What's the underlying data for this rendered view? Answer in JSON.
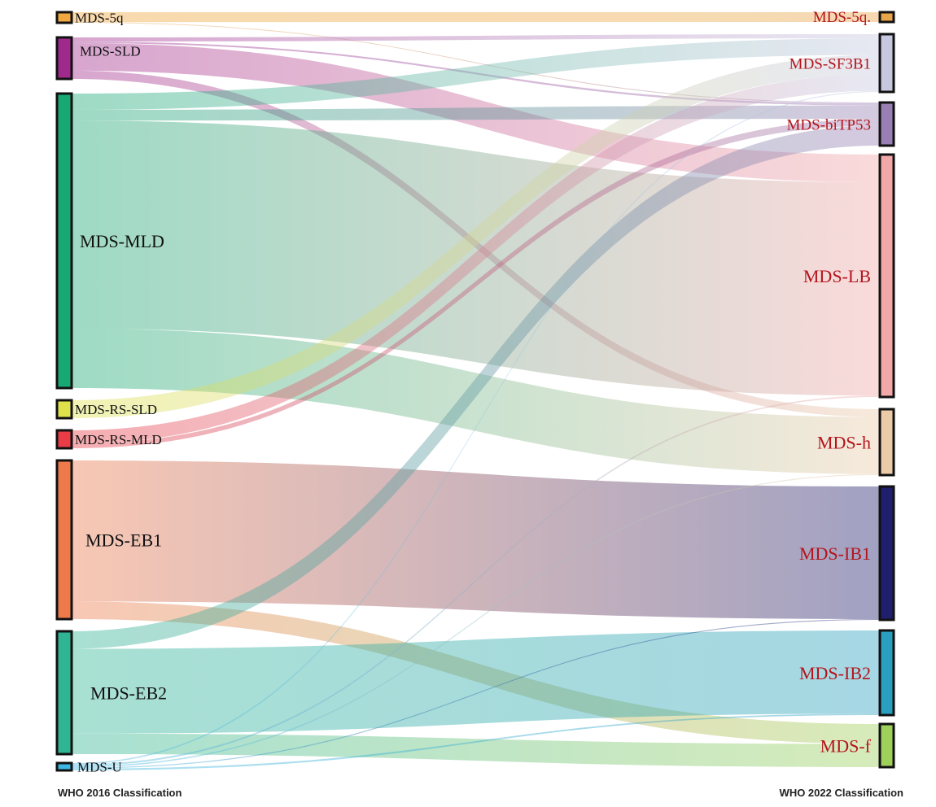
{
  "left_axis_title": "WHO 2016 Classification",
  "right_axis_title": "WHO 2022 Classification",
  "source_nodes": [
    {
      "id": "MDS-5q",
      "label": "MDS-5q",
      "color": "#f1a83e"
    },
    {
      "id": "MDS-SLD",
      "label": "MDS-SLD",
      "color": "#a02a8c"
    },
    {
      "id": "MDS-MLD",
      "label": "MDS-MLD",
      "color": "#17a874"
    },
    {
      "id": "MDS-RS-SLD",
      "label": "MDS-RS-SLD",
      "color": "#dfe24a"
    },
    {
      "id": "MDS-RS-MLD",
      "label": "MDS-RS-MLD",
      "color": "#e93c46"
    },
    {
      "id": "MDS-EB1",
      "label": "MDS-EB1",
      "color": "#ee7a4c"
    },
    {
      "id": "MDS-EB2",
      "label": "MDS-EB2",
      "color": "#2fb594"
    },
    {
      "id": "MDS-U",
      "label": "MDS-U",
      "color": "#3cb6e3"
    }
  ],
  "target_nodes": [
    {
      "id": "MDS-5q.",
      "label": "MDS-5q.",
      "color": "#e9a54a"
    },
    {
      "id": "MDS-SF3B1",
      "label": "MDS-SF3B1",
      "color": "#c6c8e0"
    },
    {
      "id": "MDS-biTP53",
      "label": "MDS-biTP53",
      "color": "#9a7fb4"
    },
    {
      "id": "MDS-LB",
      "label": "MDS-LB",
      "color": "#f2a8a8"
    },
    {
      "id": "MDS-h",
      "label": "MDS-h",
      "color": "#ebcba8"
    },
    {
      "id": "MDS-IB1",
      "label": "MDS-IB1",
      "color": "#1f1f6e"
    },
    {
      "id": "MDS-IB2",
      "label": "MDS-IB2",
      "color": "#2a9fbf"
    },
    {
      "id": "MDS-f",
      "label": "MDS-f",
      "color": "#9ed05a"
    }
  ],
  "links": [
    {
      "source": "MDS-5q",
      "target": "MDS-5q.",
      "value": 4,
      "color": "#f1a83e"
    },
    {
      "source": "MDS-5q",
      "target": "MDS-biTP53",
      "value": 0.3,
      "color": "#f1a83e"
    },
    {
      "source": "MDS-SLD",
      "target": "MDS-SF3B1",
      "value": 1.5,
      "color": "#a02a8c"
    },
    {
      "source": "MDS-SLD",
      "target": "MDS-biTP53",
      "value": 0.6,
      "color": "#a02a8c"
    },
    {
      "source": "MDS-SLD",
      "target": "MDS-LB",
      "value": 10,
      "color": "#a02a8c"
    },
    {
      "source": "MDS-SLD",
      "target": "MDS-h",
      "value": 3,
      "color": "#a02a8c"
    },
    {
      "source": "MDS-MLD",
      "target": "MDS-SF3B1",
      "value": 6,
      "color": "#17a874"
    },
    {
      "source": "MDS-MLD",
      "target": "MDS-biTP53",
      "value": 4,
      "color": "#17a874"
    },
    {
      "source": "MDS-MLD",
      "target": "MDS-LB",
      "value": 77,
      "color": "#17a874"
    },
    {
      "source": "MDS-MLD",
      "target": "MDS-h",
      "value": 22,
      "color": "#17a874"
    },
    {
      "source": "MDS-RS-SLD",
      "target": "MDS-SF3B1",
      "value": 7,
      "color": "#dfe24a"
    },
    {
      "source": "MDS-RS-MLD",
      "target": "MDS-SF3B1",
      "value": 6,
      "color": "#e93c46"
    },
    {
      "source": "MDS-RS-MLD",
      "target": "MDS-biTP53",
      "value": 2,
      "color": "#e93c46"
    },
    {
      "source": "MDS-EB1",
      "target": "MDS-IB1",
      "value": 48,
      "color": "#ee7a4c"
    },
    {
      "source": "MDS-EB1",
      "target": "MDS-f",
      "value": 6,
      "color": "#ee7a4c"
    },
    {
      "source": "MDS-EB2",
      "target": "MDS-biTP53",
      "value": 6,
      "color": "#2fb594"
    },
    {
      "source": "MDS-EB2",
      "target": "MDS-IB2",
      "value": 29,
      "color": "#2fb594"
    },
    {
      "source": "MDS-EB2",
      "target": "MDS-f",
      "value": 7,
      "color": "#2fb594"
    },
    {
      "source": "MDS-U",
      "target": "MDS-SF3B1",
      "value": 0.4,
      "color": "#3cb6e3"
    },
    {
      "source": "MDS-U",
      "target": "MDS-LB",
      "value": 0.5,
      "color": "#3cb6e3"
    },
    {
      "source": "MDS-U",
      "target": "MDS-h",
      "value": 0.4,
      "color": "#3cb6e3"
    },
    {
      "source": "MDS-U",
      "target": "MDS-IB1",
      "value": 0.3,
      "color": "#3cb6e3"
    },
    {
      "source": "MDS-U",
      "target": "MDS-IB2",
      "value": 0.5,
      "color": "#3cb6e3"
    }
  ]
}
